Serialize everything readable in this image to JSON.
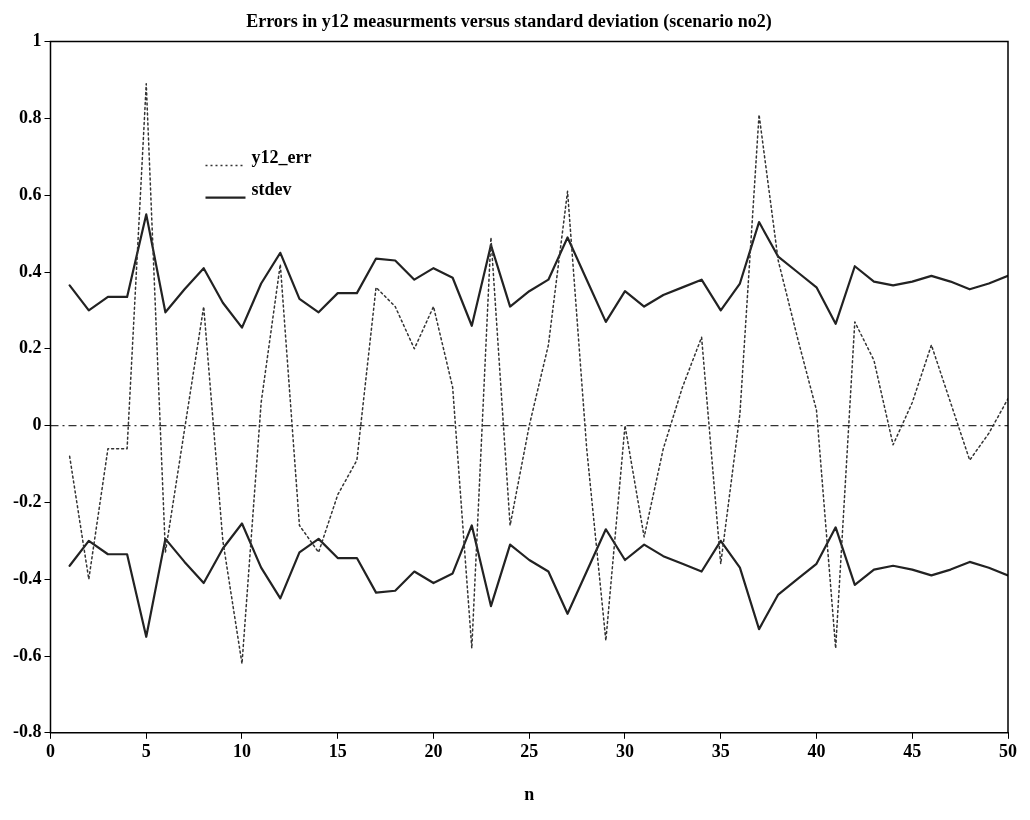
{
  "chart_data": {
    "type": "line",
    "title": "Errors in y12 measurments versus standard deviation (scenario no2)",
    "xlabel": "n",
    "x": [
      1,
      2,
      3,
      4,
      5,
      6,
      7,
      8,
      9,
      10,
      11,
      12,
      13,
      14,
      15,
      16,
      17,
      18,
      19,
      20,
      21,
      22,
      23,
      24,
      25,
      26,
      27,
      28,
      29,
      30,
      31,
      32,
      33,
      34,
      35,
      36,
      37,
      38,
      39,
      40,
      41,
      42,
      43,
      44,
      45,
      46,
      47,
      48,
      49,
      50
    ],
    "series": [
      {
        "name": "y12_err",
        "color": "#333333",
        "line_style": "dotted",
        "values": [
          -0.08,
          -0.4,
          -0.06,
          -0.06,
          0.89,
          -0.33,
          -0.01,
          0.31,
          -0.3,
          -0.62,
          0.06,
          0.42,
          -0.26,
          -0.33,
          -0.18,
          -0.09,
          0.36,
          0.31,
          0.2,
          0.31,
          0.1,
          -0.58,
          0.49,
          -0.26,
          0,
          0.21,
          0.61,
          -0.06,
          -0.56,
          0,
          -0.29,
          -0.06,
          0.1,
          0.23,
          -0.36,
          0.03,
          0.81,
          0.43,
          0.23,
          0.04,
          -0.58,
          0.27,
          0.17,
          -0.05,
          0.06,
          0.21,
          0.06,
          -0.09,
          -0.02,
          0.07
        ]
      },
      {
        "name": "stdev",
        "color": "#222222",
        "line_style": "solid",
        "values": [
          0.365,
          0.3,
          0.335,
          0.335,
          0.55,
          0.295,
          0.355,
          0.41,
          0.32,
          0.255,
          0.37,
          0.45,
          0.33,
          0.295,
          0.345,
          0.345,
          0.435,
          0.43,
          0.38,
          0.41,
          0.385,
          0.26,
          0.47,
          0.31,
          0.35,
          0.38,
          0.49,
          0.38,
          0.27,
          0.35,
          0.31,
          0.34,
          0.36,
          0.38,
          0.3,
          0.37,
          0.53,
          0.44,
          0.4,
          0.36,
          0.265,
          0.415,
          0.375,
          0.365,
          0.375,
          0.39,
          0.375,
          0.355,
          0.37,
          0.39
        ]
      },
      {
        "color": "#222222",
        "line_style": "solid",
        "values": [
          -0.365,
          -0.3,
          -0.335,
          -0.335,
          -0.55,
          -0.295,
          -0.355,
          -0.41,
          -0.32,
          -0.255,
          -0.37,
          -0.45,
          -0.33,
          -0.295,
          -0.345,
          -0.345,
          -0.435,
          -0.43,
          -0.38,
          -0.41,
          -0.385,
          -0.26,
          -0.47,
          -0.31,
          -0.35,
          -0.38,
          -0.49,
          -0.38,
          -0.27,
          -0.35,
          -0.31,
          -0.34,
          -0.36,
          -0.38,
          -0.3,
          -0.37,
          -0.53,
          -0.44,
          -0.4,
          -0.36,
          -0.265,
          -0.415,
          -0.375,
          -0.365,
          -0.375,
          -0.39,
          -0.375,
          -0.355,
          -0.37,
          -0.39
        ]
      }
    ],
    "xlim": [
      0,
      50
    ],
    "xticks": [
      0,
      5,
      10,
      15,
      20,
      25,
      30,
      35,
      40,
      45,
      50
    ],
    "ylim": [
      -0.8,
      1
    ],
    "yticks": [
      -0.8,
      -0.6,
      -0.4,
      -0.2,
      0,
      0.2,
      0.4,
      0.6,
      0.8,
      1
    ],
    "ref_lines": [
      {
        "axis": "y",
        "value": 0,
        "color": "#333333",
        "line_style": "dashdot"
      }
    ],
    "grid": false,
    "legend": "top left",
    "marker": "none"
  }
}
